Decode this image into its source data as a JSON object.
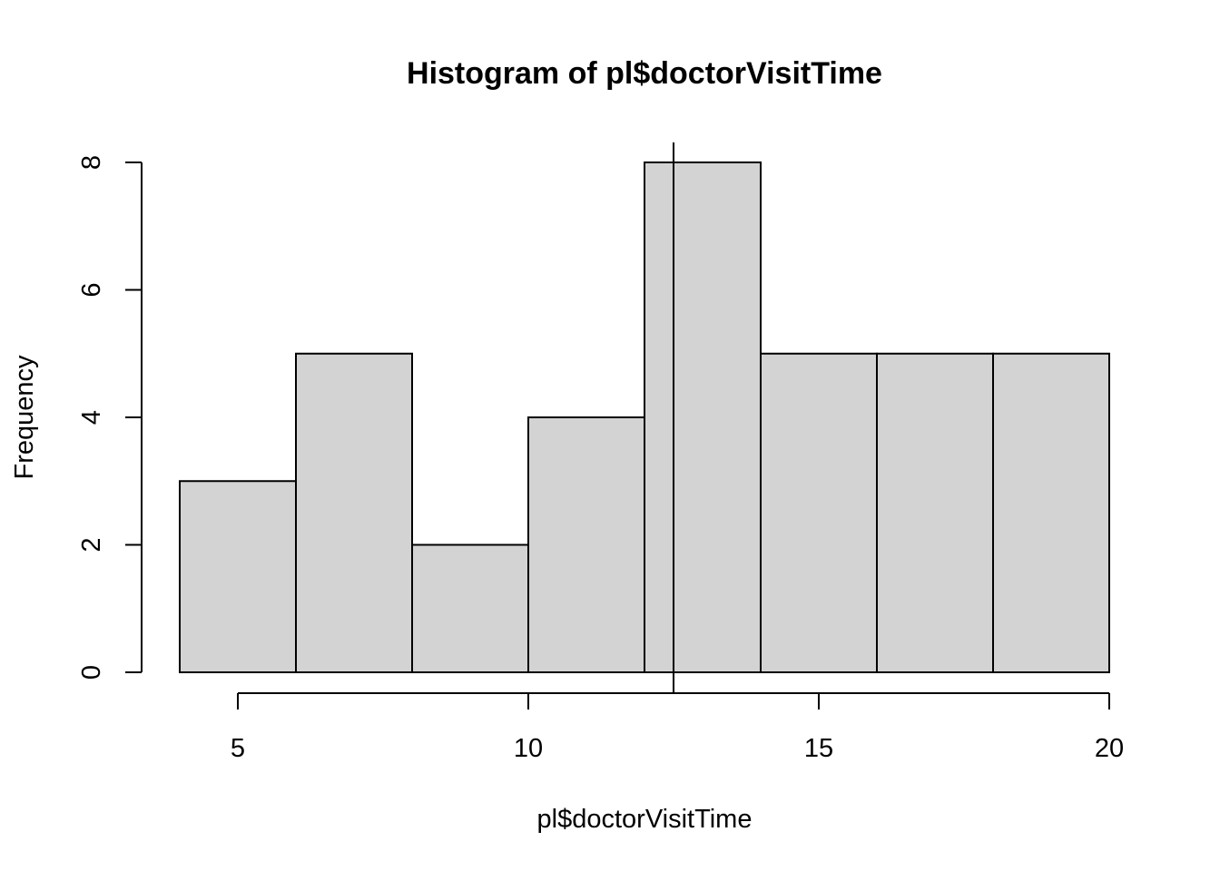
{
  "chart_data": {
    "type": "bar",
    "subtype": "histogram",
    "title": "Histogram of pl$doctorVisitTime",
    "xlabel": "pl$doctorVisitTime",
    "ylabel": "Frequency",
    "bins": [
      {
        "from": 4,
        "to": 6,
        "count": 3
      },
      {
        "from": 6,
        "to": 8,
        "count": 5
      },
      {
        "from": 8,
        "to": 10,
        "count": 2
      },
      {
        "from": 10,
        "to": 12,
        "count": 4
      },
      {
        "from": 12,
        "to": 14,
        "count": 8
      },
      {
        "from": 14,
        "to": 16,
        "count": 5
      },
      {
        "from": 16,
        "to": 18,
        "count": 5
      },
      {
        "from": 18,
        "to": 20,
        "count": 5
      }
    ],
    "xticks": [
      5,
      10,
      15,
      20
    ],
    "yticks": [
      0,
      2,
      4,
      6,
      8
    ],
    "xlim": [
      4,
      20
    ],
    "ylim": [
      0,
      8
    ],
    "reference_line_x": 12.5,
    "bar_color": "#d3d3d3",
    "grid": false,
    "legend": "none"
  }
}
